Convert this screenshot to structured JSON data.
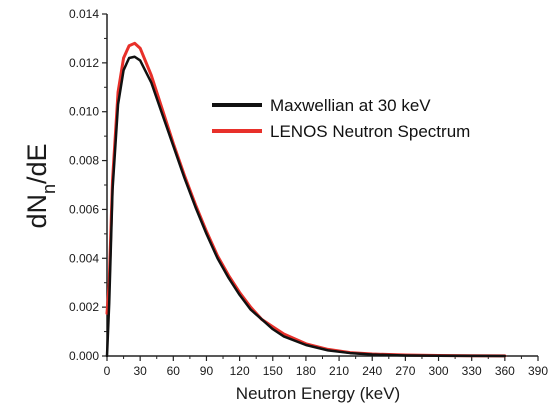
{
  "chart_data": {
    "type": "line",
    "title": "",
    "xlabel": "Neutron Energy (keV)",
    "ylabel": {
      "main": "dN",
      "subscript": "n",
      "tail": "/dE"
    },
    "xlim": [
      0,
      390
    ],
    "ylim": [
      0,
      0.014
    ],
    "x_ticks": [
      "0",
      "30",
      "60",
      "90",
      "120",
      "150",
      "180",
      "210",
      "240",
      "270",
      "300",
      "330",
      "360",
      "390"
    ],
    "y_ticks": [
      "0.000",
      "0.002",
      "0.004",
      "0.006",
      "0.008",
      "0.010",
      "0.012",
      "0.014"
    ],
    "grid": false,
    "legend_position": "top-right",
    "series": [
      {
        "name": "Maxwellian at 30 keV",
        "color": "#111111",
        "x": [
          0,
          2,
          5,
          10,
          15,
          20,
          25,
          30,
          40,
          50,
          60,
          70,
          80,
          90,
          100,
          110,
          120,
          130,
          140,
          150,
          160,
          180,
          200,
          220,
          240,
          270,
          300,
          330,
          360
        ],
        "y": [
          0,
          0.00215,
          0.0068,
          0.0103,
          0.0117,
          0.0122,
          0.01225,
          0.0121,
          0.0112,
          0.0099,
          0.0086,
          0.0073,
          0.0061,
          0.005,
          0.004,
          0.0032,
          0.0025,
          0.0019,
          0.0015,
          0.0011,
          0.0008,
          0.00045,
          0.00023,
          0.00012,
          6e-05,
          2e-05,
          1e-05,
          5e-06,
          2e-06
        ]
      },
      {
        "name": "LENOS Neutron Spectrum",
        "color": "#e8302a",
        "x": [
          0,
          2,
          5,
          10,
          15,
          20,
          25,
          30,
          40,
          50,
          60,
          70,
          80,
          90,
          100,
          110,
          120,
          130,
          140,
          150,
          160,
          180,
          200,
          220,
          240,
          270,
          300,
          330,
          360
        ],
        "y": [
          0.00175,
          0.003,
          0.0072,
          0.0108,
          0.0122,
          0.0127,
          0.0128,
          0.0126,
          0.0115,
          0.0101,
          0.0087,
          0.0074,
          0.0062,
          0.0051,
          0.0041,
          0.0033,
          0.0026,
          0.002,
          0.0015,
          0.0012,
          0.0009,
          0.0005,
          0.00027,
          0.00014,
          8e-05,
          4e-05,
          2e-05,
          1e-05,
          5e-06
        ]
      }
    ]
  }
}
